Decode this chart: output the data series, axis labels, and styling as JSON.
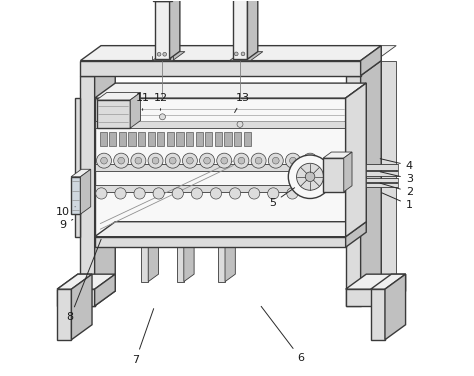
{
  "bg_color": "#ffffff",
  "line_color": "#3a3a3a",
  "label_color": "#1a1a1a",
  "figsize": [
    4.74,
    3.76
  ],
  "dpi": 100,
  "label_positions": {
    "1": [
      0.96,
      0.455,
      0.88,
      0.49
    ],
    "2": [
      0.96,
      0.49,
      0.875,
      0.515
    ],
    "3": [
      0.96,
      0.525,
      0.875,
      0.545
    ],
    "4": [
      0.96,
      0.56,
      0.875,
      0.58
    ],
    "5": [
      0.595,
      0.46,
      0.66,
      0.505
    ],
    "6": [
      0.67,
      0.045,
      0.56,
      0.19
    ],
    "7": [
      0.23,
      0.042,
      0.28,
      0.185
    ],
    "8": [
      0.055,
      0.155,
      0.14,
      0.37
    ],
    "9": [
      0.035,
      0.4,
      0.068,
      0.42
    ],
    "10": [
      0.035,
      0.435,
      0.068,
      0.45
    ],
    "11": [
      0.248,
      0.74,
      0.248,
      0.7
    ],
    "12": [
      0.298,
      0.74,
      0.295,
      0.7
    ],
    "13": [
      0.515,
      0.74,
      0.49,
      0.695
    ]
  }
}
